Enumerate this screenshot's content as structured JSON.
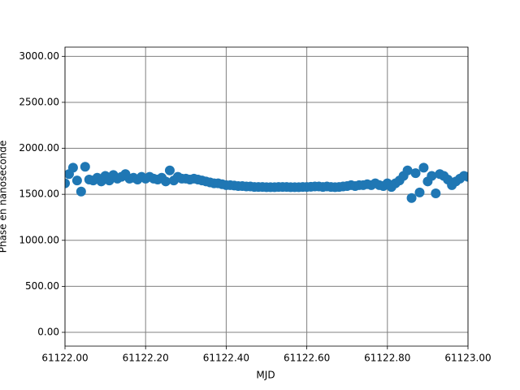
{
  "chart_data": {
    "type": "scatter",
    "x_label": "MJD",
    "y_label": "Phase en nanoseconde",
    "color": "#1f77b4",
    "grid": true,
    "x": [
      61122.0,
      61122.01,
      61122.02,
      61122.03,
      61122.04,
      61122.05,
      61122.06,
      61122.07,
      61122.08,
      61122.09,
      61122.1,
      61122.11,
      61122.12,
      61122.13,
      61122.14,
      61122.15,
      61122.16,
      61122.17,
      61122.18,
      61122.19,
      61122.2,
      61122.21,
      61122.22,
      61122.23,
      61122.24,
      61122.25,
      61122.26,
      61122.27,
      61122.28,
      61122.29,
      61122.3,
      61122.31,
      61122.32,
      61122.33,
      61122.34,
      61122.35,
      61122.36,
      61122.37,
      61122.38,
      61122.39,
      61122.4,
      61122.41,
      61122.42,
      61122.43,
      61122.44,
      61122.45,
      61122.46,
      61122.47,
      61122.48,
      61122.49,
      61122.5,
      61122.51,
      61122.52,
      61122.53,
      61122.54,
      61122.55,
      61122.56,
      61122.57,
      61122.58,
      61122.59,
      61122.6,
      61122.61,
      61122.62,
      61122.63,
      61122.64,
      61122.65,
      61122.66,
      61122.67,
      61122.68,
      61122.69,
      61122.7,
      61122.71,
      61122.72,
      61122.73,
      61122.74,
      61122.75,
      61122.76,
      61122.77,
      61122.78,
      61122.79,
      61122.8,
      61122.81,
      61122.82,
      61122.83,
      61122.84,
      61122.85,
      61122.86,
      61122.87,
      61122.88,
      61122.89,
      61122.9,
      61122.91,
      61122.92,
      61122.93,
      61122.94,
      61122.95,
      61122.96,
      61122.97,
      61122.98,
      61122.99,
      61123.0
    ],
    "values": [
      1620,
      1720,
      1790,
      1650,
      1530,
      1800,
      1660,
      1650,
      1680,
      1640,
      1700,
      1650,
      1710,
      1670,
      1690,
      1720,
      1670,
      1680,
      1660,
      1690,
      1670,
      1690,
      1670,
      1660,
      1680,
      1640,
      1760,
      1650,
      1690,
      1670,
      1670,
      1660,
      1670,
      1660,
      1650,
      1640,
      1630,
      1620,
      1620,
      1610,
      1600,
      1600,
      1595,
      1590,
      1590,
      1585,
      1585,
      1580,
      1580,
      1580,
      1578,
      1578,
      1578,
      1580,
      1580,
      1580,
      1578,
      1578,
      1578,
      1580,
      1580,
      1582,
      1585,
      1585,
      1580,
      1585,
      1580,
      1578,
      1580,
      1585,
      1590,
      1600,
      1590,
      1600,
      1600,
      1610,
      1600,
      1620,
      1600,
      1590,
      1620,
      1580,
      1620,
      1650,
      1700,
      1760,
      1460,
      1730,
      1520,
      1790,
      1640,
      1700,
      1510,
      1720,
      1700,
      1660,
      1600,
      1640,
      1670,
      1700,
      1690
    ],
    "xlim": [
      61122.0,
      61123.0
    ],
    "xticks": [
      {
        "value": 61122.0,
        "label": "61122.00"
      },
      {
        "value": 61122.2,
        "label": "61122.20"
      },
      {
        "value": 61122.4,
        "label": "61122.40"
      },
      {
        "value": 61122.6,
        "label": "61122.60"
      },
      {
        "value": 61122.8,
        "label": "61122.80"
      },
      {
        "value": 61123.0,
        "label": "61123.00"
      }
    ],
    "ylim": [
      -150,
      3100
    ],
    "yticks": [
      {
        "value": 0,
        "label": "0.00"
      },
      {
        "value": 500,
        "label": "500.00"
      },
      {
        "value": 1000,
        "label": "1000.00"
      },
      {
        "value": 1500,
        "label": "1500.00"
      },
      {
        "value": 2000,
        "label": "2000.00"
      },
      {
        "value": 2500,
        "label": "2500.00"
      },
      {
        "value": 3000,
        "label": "3000.00"
      }
    ]
  }
}
